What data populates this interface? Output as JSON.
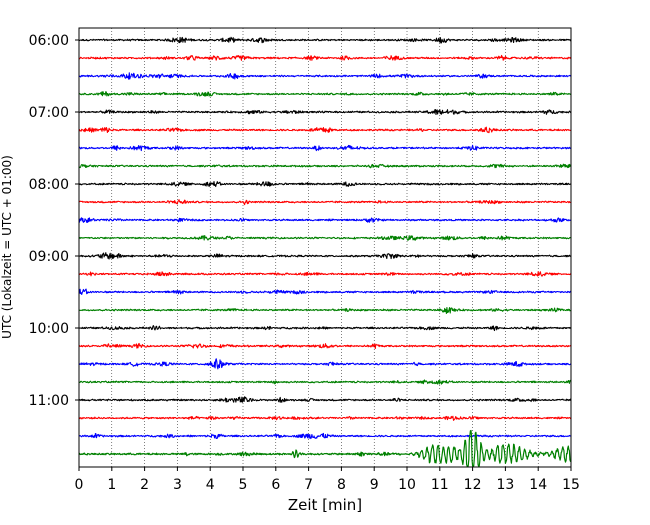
{
  "chart_data": {
    "type": "line",
    "title": "",
    "xlabel": "Zeit  [min]",
    "ylabel": "UTC (Lokalzeit = UTC + 01:00)",
    "xlim": [
      0,
      15
    ],
    "x_ticks": [
      0,
      1,
      2,
      3,
      4,
      5,
      6,
      7,
      8,
      9,
      10,
      11,
      12,
      13,
      14,
      15
    ],
    "x_tick_labels": [
      "0",
      "1",
      "2",
      "3",
      "4",
      "5",
      "6",
      "7",
      "8",
      "9",
      "10",
      "11",
      "12",
      "13",
      "14",
      "15"
    ],
    "y_tick_labels": [
      "06:00",
      "07:00",
      "08:00",
      "09:00",
      "10:00",
      "11:00"
    ],
    "grid": "vertical dotted lines at each minute",
    "trace_interval_minutes": 15,
    "trace_count": 24,
    "trace_color_cycle": [
      "#000000",
      "#ff0000",
      "#0000ff",
      "#008000"
    ],
    "traces": [
      {
        "start": "06:00",
        "color": "#000000"
      },
      {
        "start": "06:15",
        "color": "#ff0000"
      },
      {
        "start": "06:30",
        "color": "#0000ff"
      },
      {
        "start": "06:45",
        "color": "#008000"
      },
      {
        "start": "07:00",
        "color": "#000000"
      },
      {
        "start": "07:15",
        "color": "#ff0000"
      },
      {
        "start": "07:30",
        "color": "#0000ff"
      },
      {
        "start": "07:45",
        "color": "#008000"
      },
      {
        "start": "08:00",
        "color": "#000000"
      },
      {
        "start": "08:15",
        "color": "#ff0000"
      },
      {
        "start": "08:30",
        "color": "#0000ff"
      },
      {
        "start": "08:45",
        "color": "#008000"
      },
      {
        "start": "09:00",
        "color": "#000000"
      },
      {
        "start": "09:15",
        "color": "#ff0000"
      },
      {
        "start": "09:30",
        "color": "#0000ff"
      },
      {
        "start": "09:45",
        "color": "#008000"
      },
      {
        "start": "10:00",
        "color": "#000000"
      },
      {
        "start": "10:15",
        "color": "#ff0000"
      },
      {
        "start": "10:30",
        "color": "#0000ff"
      },
      {
        "start": "10:45",
        "color": "#008000"
      },
      {
        "start": "11:00",
        "color": "#000000"
      },
      {
        "start": "11:15",
        "color": "#ff0000"
      },
      {
        "start": "11:30",
        "color": "#0000ff"
      },
      {
        "start": "11:45",
        "color": "#008000"
      }
    ],
    "events": [
      {
        "trace": "11:45",
        "x_start": 9.8,
        "x_peak": 12.0,
        "x_end": 15,
        "note": "large-amplitude arrival, strongest between 11.8 and 12.3 min"
      }
    ]
  }
}
